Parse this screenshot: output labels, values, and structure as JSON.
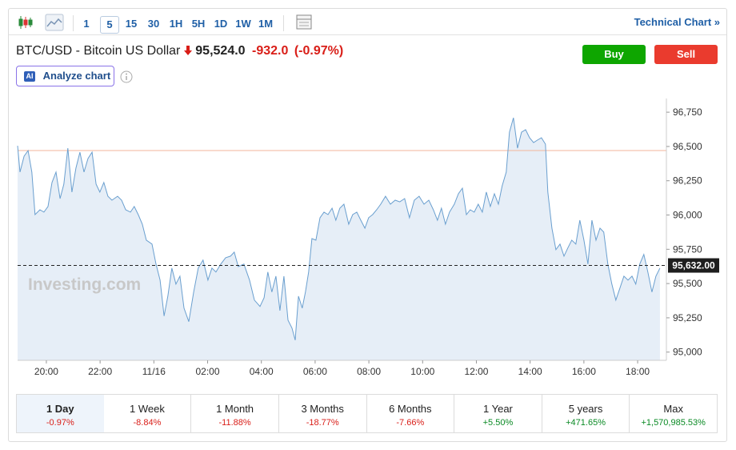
{
  "toolbar": {
    "intervals": [
      "1",
      "5",
      "15",
      "30",
      "1H",
      "5H",
      "1D",
      "1W",
      "1M"
    ],
    "selected_index": 1,
    "link": "Technical Chart »"
  },
  "header": {
    "instrument": "BTC/USD - Bitcoin US Dollar",
    "price": "95,524.0",
    "change": "-932.0",
    "change_percent": "(-0.97%)",
    "ai_badge": "AI",
    "analyze": "Analyze chart",
    "buy": "Buy",
    "sell": "Sell"
  },
  "chart_data": {
    "type": "line",
    "color": "#6a9fcf",
    "fill": "#e6eef7",
    "x": [
      18.93,
      19.02,
      19.17,
      19.32,
      19.46,
      19.58,
      19.76,
      19.91,
      20.06,
      20.21,
      20.36,
      20.51,
      20.65,
      20.8,
      20.95,
      21.1,
      21.25,
      21.4,
      21.55,
      21.7,
      21.85,
      21.99,
      22.14,
      22.29,
      22.44,
      22.65,
      22.8,
      22.95,
      23.13,
      23.27,
      23.42,
      23.57,
      23.72,
      23.93,
      24.08,
      24.23,
      24.38,
      24.52,
      24.67,
      24.82,
      24.97,
      25.12,
      25.3,
      25.48,
      25.65,
      25.83,
      26.01,
      26.16,
      26.31,
      26.49,
      26.67,
      26.85,
      26.99,
      27.14,
      27.35,
      27.56,
      27.74,
      27.95,
      28.1,
      28.24,
      28.39,
      28.54,
      28.69,
      28.84,
      28.99,
      29.14,
      29.26,
      29.38,
      29.52,
      29.64,
      29.76,
      29.88,
      30.03,
      30.18,
      30.33,
      30.48,
      30.63,
      30.77,
      30.92,
      31.07,
      31.25,
      31.4,
      31.55,
      31.7,
      31.85,
      31.99,
      32.14,
      32.29,
      32.44,
      32.62,
      32.8,
      32.98,
      33.15,
      33.33,
      33.51,
      33.69,
      33.87,
      34.05,
      34.23,
      34.4,
      34.55,
      34.7,
      34.85,
      35.0,
      35.18,
      35.33,
      35.48,
      35.63,
      35.77,
      35.92,
      36.07,
      36.22,
      36.37,
      36.52,
      36.67,
      36.82,
      36.96,
      37.11,
      37.23,
      37.38,
      37.53,
      37.68,
      37.83,
      37.98,
      38.13,
      38.27,
      38.42,
      38.57,
      38.66,
      38.81,
      38.96,
      39.11,
      39.26,
      39.4,
      39.55,
      39.7,
      39.85,
      40.0,
      40.15,
      40.3,
      40.45,
      40.6,
      40.74,
      40.89,
      41.04,
      41.19,
      41.34,
      41.49,
      41.64,
      41.79,
      41.93,
      42.08,
      42.23,
      42.38,
      42.53,
      42.68,
      42.83
    ],
    "values": [
      96505,
      96313,
      96429,
      96470,
      96313,
      96003,
      96038,
      96021,
      96062,
      96237,
      96313,
      96120,
      96225,
      96488,
      96167,
      96342,
      96458,
      96313,
      96412,
      96458,
      96225,
      96167,
      96237,
      96137,
      96108,
      96137,
      96108,
      96038,
      96021,
      96062,
      96003,
      95933,
      95817,
      95788,
      95642,
      95525,
      95263,
      95408,
      95613,
      95496,
      95554,
      95321,
      95222,
      95438,
      95613,
      95671,
      95525,
      95613,
      95584,
      95642,
      95688,
      95700,
      95729,
      95624,
      95642,
      95525,
      95379,
      95333,
      95396,
      95584,
      95438,
      95554,
      95303,
      95554,
      95233,
      95175,
      95087,
      95408,
      95321,
      95438,
      95584,
      95828,
      95817,
      95980,
      96021,
      96003,
      96050,
      95962,
      96050,
      96079,
      95933,
      96003,
      96021,
      95962,
      95904,
      95980,
      96003,
      96038,
      96079,
      96137,
      96079,
      96108,
      96096,
      96120,
      95980,
      96108,
      96137,
      96079,
      96108,
      96038,
      95962,
      96050,
      95933,
      96021,
      96079,
      96155,
      96196,
      96003,
      96038,
      96021,
      96079,
      96021,
      96167,
      96062,
      96155,
      96079,
      96213,
      96313,
      96604,
      96709,
      96488,
      96604,
      96622,
      96563,
      96528,
      96546,
      96563,
      96517,
      96167,
      95904,
      95747,
      95788,
      95700,
      95759,
      95817,
      95788,
      95962,
      95817,
      95642,
      95962,
      95817,
      95904,
      95875,
      95642,
      95496,
      95379,
      95467,
      95554,
      95525,
      95554,
      95496,
      95642,
      95712,
      95584,
      95438,
      95554,
      95613
    ],
    "xlim": [
      18.93,
      43.07
    ],
    "ylim": [
      94940,
      96850
    ],
    "xticks": [
      {
        "value": 20,
        "label": "20:00"
      },
      {
        "value": 22,
        "label": "22:00"
      },
      {
        "value": 24,
        "label": "11/16"
      },
      {
        "value": 26,
        "label": "02:00"
      },
      {
        "value": 28,
        "label": "04:00"
      },
      {
        "value": 30,
        "label": "06:00"
      },
      {
        "value": 32,
        "label": "08:00"
      },
      {
        "value": 34,
        "label": "10:00"
      },
      {
        "value": 36,
        "label": "12:00"
      },
      {
        "value": 38,
        "label": "14:00"
      },
      {
        "value": 40,
        "label": "16:00"
      },
      {
        "value": 42,
        "label": "18:00"
      }
    ],
    "yticks": [
      {
        "value": 95000,
        "label": "95,000"
      },
      {
        "value": 95250,
        "label": "95,250"
      },
      {
        "value": 95500,
        "label": "95,500"
      },
      {
        "value": 95750,
        "label": "95,750"
      },
      {
        "value": 96000,
        "label": "96,000"
      },
      {
        "value": 96250,
        "label": "96,250"
      },
      {
        "value": 96500,
        "label": "96,500"
      },
      {
        "value": 96750,
        "label": "96,750"
      }
    ],
    "price_line": {
      "value": 95632,
      "label": "95,632.00"
    },
    "reference_line": 96470,
    "reference_color": "#f3b69b",
    "watermark": "Investing.com"
  },
  "periods": [
    {
      "label": "1 Day",
      "change": "-0.97%"
    },
    {
      "label": "1 Week",
      "change": "-8.84%"
    },
    {
      "label": "1 Month",
      "change": "-11.88%"
    },
    {
      "label": "3 Months",
      "change": "-18.77%"
    },
    {
      "label": "6 Months",
      "change": "-7.66%"
    },
    {
      "label": "1 Year",
      "change": "+5.50%"
    },
    {
      "label": "5 years",
      "change": "+471.65%"
    },
    {
      "label": "Max",
      "change": "+1,570,985.53%"
    }
  ],
  "selected_period": 0
}
